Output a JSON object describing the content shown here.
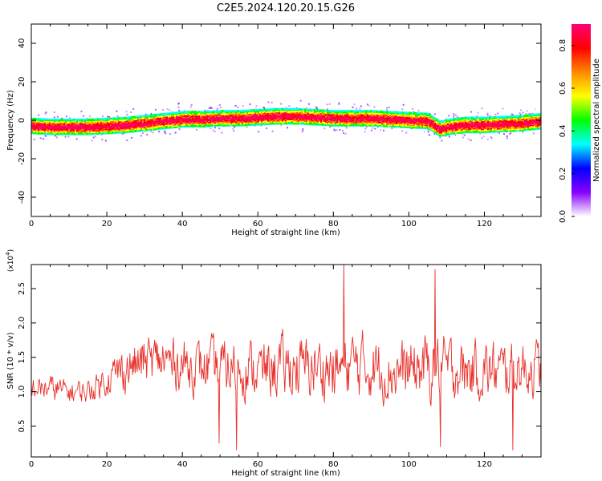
{
  "title": "C2E5.2024.120.20.15.G26",
  "chart_data": [
    {
      "type": "heatmap",
      "xlabel": "Height of straight line (km)",
      "ylabel": "Frequency (Hz)",
      "xlim": [
        0,
        135
      ],
      "ylim": [
        -50,
        50
      ],
      "xticks": [
        0,
        20,
        40,
        60,
        80,
        100,
        120
      ],
      "yticks": [
        -40,
        -20,
        0,
        20,
        40
      ],
      "colorbar": {
        "label": "Normalized spectral amplitude",
        "range": [
          0.0,
          0.9
        ],
        "ticks": [
          0.0,
          0.2,
          0.4,
          0.6,
          0.8
        ],
        "colormap": [
          "#ffffff",
          "#8800ff",
          "#0000ff",
          "#00ffff",
          "#00ff00",
          "#ffff00",
          "#ff8800",
          "#ff0000",
          "#ff0077"
        ]
      },
      "ridge_center_hz": {
        "x_km": [
          0,
          5,
          10,
          15,
          20,
          25,
          30,
          35,
          40,
          45,
          50,
          55,
          60,
          65,
          70,
          75,
          80,
          85,
          90,
          95,
          100,
          105,
          108,
          112,
          115,
          120,
          125,
          130,
          135
        ],
        "freq_hz": [
          -2.5,
          -3,
          -3,
          -3,
          -2.5,
          -2,
          -1,
          0,
          1,
          1,
          1.5,
          1.5,
          2,
          2.5,
          2.5,
          2,
          1.5,
          1.5,
          1.5,
          1,
          0.5,
          0,
          -4,
          -2.5,
          -2,
          -2,
          -1.5,
          -1,
          0
        ]
      },
      "core_width_hz": 3,
      "halo_width_hz": 9
    },
    {
      "type": "line",
      "xlabel": "Height of straight line (km)",
      "ylabel": "SNR (10 * v/v)",
      "y_multiplier": "(x10^4)",
      "xlim": [
        0,
        135
      ],
      "ylim": [
        0.05,
        2.85
      ],
      "xticks": [
        0,
        20,
        40,
        60,
        80,
        100,
        120
      ],
      "yticks": [
        0.5,
        1.0,
        1.5,
        2.0,
        2.5
      ],
      "series": [
        {
          "color": "#e8302a",
          "envelope_x_km": [
            0,
            5,
            10,
            15,
            20,
            25,
            30,
            35,
            40,
            45,
            50,
            55,
            60,
            65,
            70,
            75,
            80,
            85,
            90,
            95,
            100,
            105,
            110,
            115,
            120,
            125,
            130,
            135
          ],
          "envelope_mean": [
            1.05,
            1.05,
            1.0,
            1.0,
            1.2,
            1.35,
            1.45,
            1.45,
            1.4,
            1.35,
            1.35,
            1.35,
            1.3,
            1.35,
            1.35,
            1.35,
            1.3,
            1.4,
            1.35,
            1.3,
            1.3,
            1.35,
            1.35,
            1.3,
            1.3,
            1.3,
            1.35,
            1.35
          ],
          "envelope_amp": [
            0.25,
            0.28,
            0.25,
            0.25,
            0.35,
            0.5,
            0.55,
            0.55,
            0.55,
            0.55,
            0.6,
            0.6,
            0.6,
            0.65,
            0.65,
            0.65,
            0.65,
            0.7,
            0.65,
            0.65,
            0.65,
            0.7,
            0.65,
            0.65,
            0.65,
            0.6,
            0.6,
            0.6
          ],
          "peaks": [
            {
              "x_km": 82.7,
              "snr": 2.85
            },
            {
              "x_km": 107.0,
              "snr": 2.78
            },
            {
              "x_km": 49.7,
              "snr": 0.25
            },
            {
              "x_km": 54.3,
              "snr": 0.15
            },
            {
              "x_km": 108.3,
              "snr": 0.2
            },
            {
              "x_km": 127.5,
              "snr": 0.15
            }
          ]
        }
      ]
    }
  ]
}
